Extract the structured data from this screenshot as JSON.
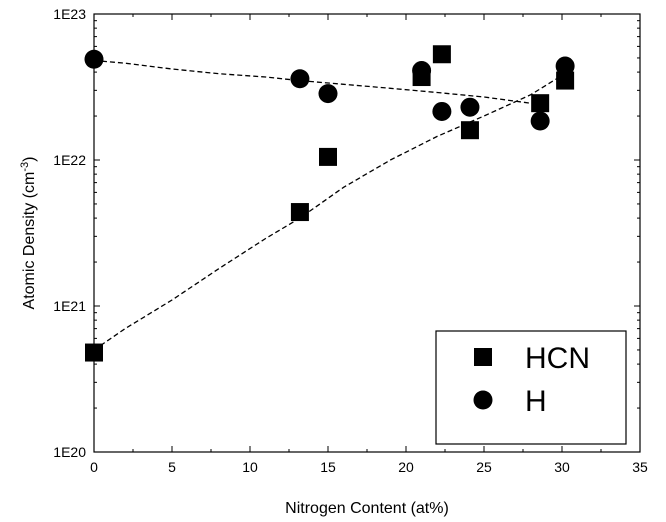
{
  "chart_data": {
    "type": "scatter",
    "title": "",
    "xlabel": "Nitrogen Content (at%)",
    "ylabel_prefix": "Atomic Density (cm",
    "ylabel_exponent": "-3",
    "ylabel_suffix": ")",
    "xlim": [
      0,
      35
    ],
    "ylim": [
      1e+20,
      1e+23
    ],
    "yscale": "log",
    "grid": false,
    "legend_position": "bottom-right",
    "x_ticks": [
      0,
      5,
      10,
      15,
      20,
      25,
      30,
      35
    ],
    "x_tick_labels": [
      "0",
      "5",
      "10",
      "15",
      "20",
      "25",
      "30",
      "35"
    ],
    "y_ticks": [
      1e+20,
      1e+21,
      1e+22,
      1e+23
    ],
    "y_tick_labels": [
      "1E20",
      "1E21",
      "1E22",
      "1E23"
    ],
    "series": [
      {
        "name": "HCN",
        "marker": "square",
        "color": "#000000",
        "points": [
          [
            0,
            4.8e+20
          ],
          [
            13.2,
            4.4e+21
          ],
          [
            15,
            1.05e+22
          ],
          [
            21,
            3.7e+22
          ],
          [
            22.3,
            5.3e+22
          ],
          [
            24.1,
            1.6e+22
          ],
          [
            28.6,
            2.45e+22
          ],
          [
            30.2,
            3.5e+22
          ]
        ]
      },
      {
        "name": "H",
        "marker": "circle",
        "color": "#000000",
        "points": [
          [
            0,
            4.9e+22
          ],
          [
            13.2,
            3.6e+22
          ],
          [
            15,
            2.85e+22
          ],
          [
            21,
            4.1e+22
          ],
          [
            22.3,
            2.15e+22
          ],
          [
            24.1,
            2.3e+22
          ],
          [
            28.6,
            1.85e+22
          ],
          [
            30.2,
            4.4e+22
          ]
        ]
      }
    ],
    "fit_lines": [
      {
        "for": "HCN",
        "style": "dashed",
        "points": [
          [
            0,
            5e+20
          ],
          [
            2,
            7e+20
          ],
          [
            5,
            1.1e+21
          ],
          [
            8,
            1.8e+21
          ],
          [
            11,
            2.9e+21
          ],
          [
            13.2,
            4e+21
          ],
          [
            16,
            6.5e+21
          ],
          [
            19,
            1e+22
          ],
          [
            22,
            1.45e+22
          ],
          [
            25,
            2e+22
          ],
          [
            28,
            2.8e+22
          ],
          [
            30,
            3.8e+22
          ]
        ]
      },
      {
        "for": "H",
        "style": "dashed",
        "points": [
          [
            0,
            4.8e+22
          ],
          [
            2,
            4.6e+22
          ],
          [
            5,
            4.2e+22
          ],
          [
            8,
            3.9e+22
          ],
          [
            11,
            3.7e+22
          ],
          [
            13.2,
            3.5e+22
          ],
          [
            16,
            3.3e+22
          ],
          [
            19,
            3.1e+22
          ],
          [
            22,
            2.9e+22
          ],
          [
            25,
            2.7e+22
          ],
          [
            28.6,
            2.4e+22
          ]
        ]
      }
    ]
  }
}
